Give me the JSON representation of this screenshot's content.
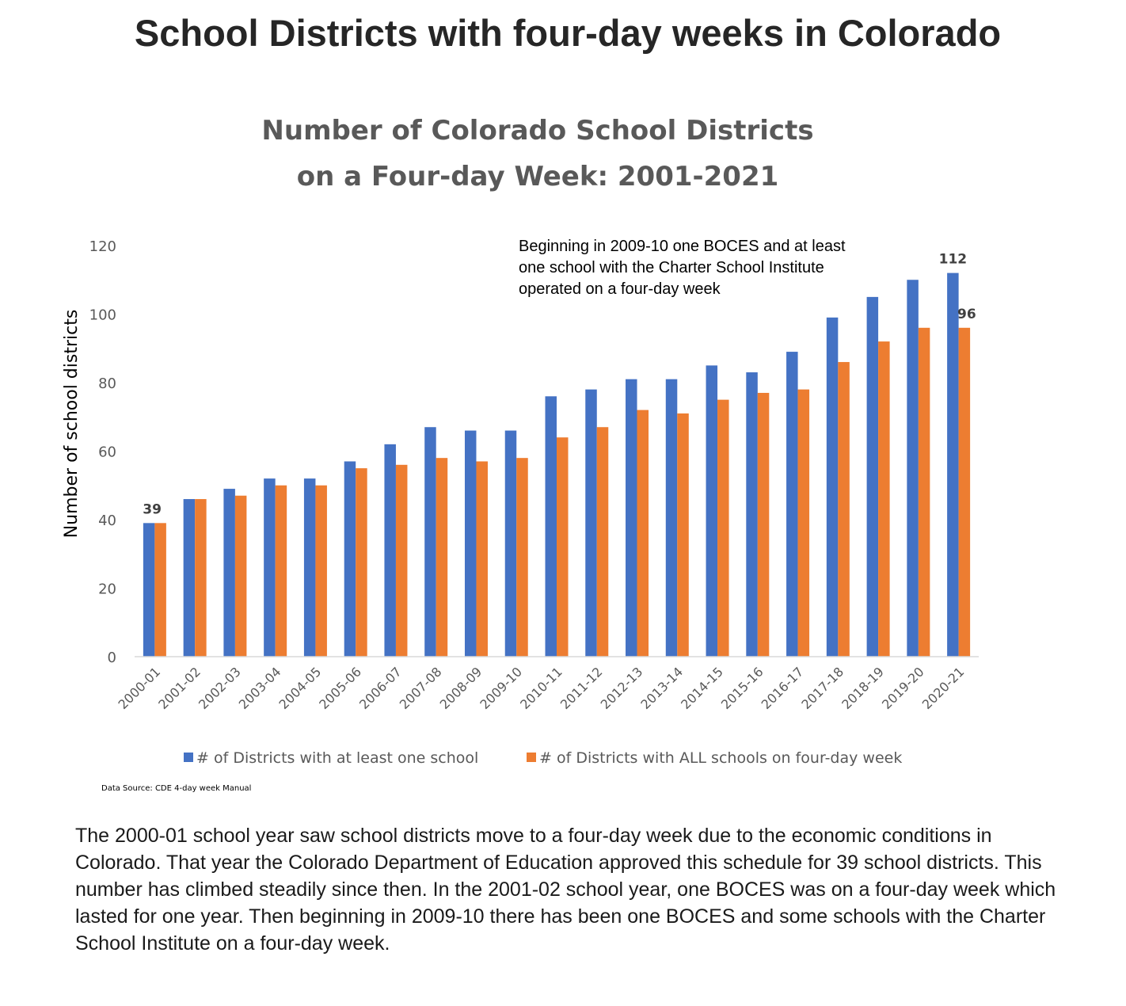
{
  "page": {
    "title": "School Districts with four-day weeks in Colorado",
    "body": "The 2000-01 school year saw school districts move to a four-day week due to the economic conditions in Colorado. That year the Colorado Department of Education approved this schedule for 39 school districts. This number has climbed steadily since then. In the 2001-02 school year, one BOCES was on a four-day week which lasted for one year. Then beginning in 2009-10 there has been one BOCES and some schools with the Charter School Institute on a four-day week."
  },
  "chart_data": {
    "type": "bar",
    "title_lines": [
      "Number of Colorado School Districts",
      "on a Four-day Week: 2001-2021"
    ],
    "xlabel": "",
    "ylabel": "Number of school districts",
    "ylim": [
      0,
      120
    ],
    "yticks": [
      0,
      20,
      40,
      60,
      80,
      100,
      120
    ],
    "grid": false,
    "legend_position": "bottom",
    "categories": [
      "2000-01",
      "2001-02",
      "2002-03",
      "2003-04",
      "2004-05",
      "2005-06",
      "2006-07",
      "2007-08",
      "2008-09",
      "2009-10",
      "2010-11",
      "2011-12",
      "2012-13",
      "2013-14",
      "2014-15",
      "2015-16",
      "2016-17",
      "2017-18",
      "2018-19",
      "2019-20",
      "2020-21"
    ],
    "series": [
      {
        "name": "# of Districts with at least one school",
        "color": "#4472C4",
        "values": [
          39,
          46,
          49,
          52,
          52,
          57,
          62,
          67,
          66,
          66,
          76,
          78,
          81,
          81,
          85,
          83,
          89,
          99,
          105,
          110,
          112
        ]
      },
      {
        "name": "# of Districts with ALL schools on four-day week",
        "color": "#ED7D31",
        "values": [
          39,
          46,
          47,
          50,
          50,
          55,
          56,
          58,
          57,
          58,
          64,
          67,
          72,
          71,
          75,
          77,
          78,
          86,
          92,
          96,
          96
        ]
      }
    ],
    "data_labels": [
      {
        "series": 0,
        "index": 0,
        "text": "39"
      },
      {
        "series": 0,
        "index": 20,
        "text": "112"
      },
      {
        "series": 1,
        "index": 20,
        "text": "96"
      }
    ],
    "annotation": [
      "Beginning in 2009-10 one BOCES and at least",
      "one school with the Charter School Institute",
      "operated on a four-day week"
    ],
    "source": "Data Source: CDE 4-day week Manual"
  }
}
